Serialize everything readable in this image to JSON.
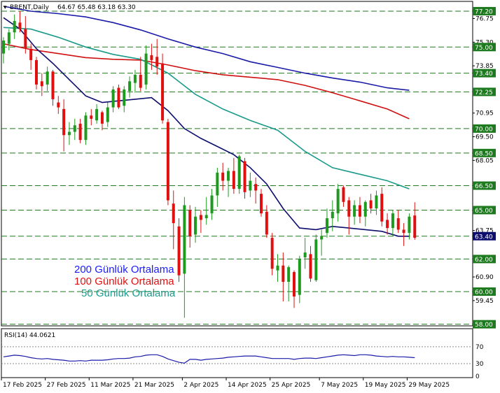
{
  "header": {
    "symbol": "BRENT,Daily",
    "ohlc": "64.67 65.48 63.18 63.30"
  },
  "legend": [
    {
      "label": "200 Günlük Ortalama",
      "color": "#1a1aff"
    },
    {
      "label": "100 Günlük Ortalama",
      "color": "#e01010"
    },
    {
      "label": "50 Günlük Ortalama",
      "color": "#1a9a8a"
    }
  ],
  "colors": {
    "bull": "#1e9a1e",
    "bear": "#e01010",
    "ma20": "#0d0d6e",
    "ma50": "#1a9a8a",
    "ma100": "#d01010",
    "ma200": "#1a1aa8",
    "level_line": "#1e7a1e",
    "level_box": "#1e7a1e",
    "price_box": "#0d0d6e",
    "rsi_line": "#1a1aa8"
  },
  "chart_data": [
    {
      "type": "candlestick",
      "title": "BRENT,Daily",
      "ylim": [
        57.9,
        77.8
      ],
      "y_ticks": [
        "76.75",
        "75.30",
        "73.85",
        "72.25",
        "70.95",
        "69.50",
        "68.05",
        "66.50",
        "65.00",
        "63.75",
        "62.00",
        "60.90",
        "59.45",
        "58.00"
      ],
      "levels": [
        77.2,
        75.0,
        73.4,
        72.25,
        70.0,
        68.5,
        66.5,
        65.0,
        63.4,
        62.0,
        60.0,
        58.0
      ],
      "level_labels": [
        "77.20",
        "75.00",
        "73.40",
        "72.25",
        "70.00",
        "68.50",
        "66.50",
        "65.00",
        "63.40",
        "62.00",
        "60.00",
        "58.00"
      ],
      "current_price": "63.40",
      "x_labels": [
        "17 Feb 2025",
        "27 Feb 2025",
        "11 Mar 2025",
        "21 Mar 2025",
        "2 Apr 2025",
        "14 Apr 2025",
        "25 Apr 2025",
        "7 May 2025",
        "19 May 2025",
        "29 May 2025"
      ],
      "x_label_index": [
        0,
        8,
        16,
        24,
        33,
        41,
        49,
        58,
        66,
        74
      ],
      "candles": [
        {
          "o": 74.6,
          "h": 75.6,
          "l": 74.0,
          "c": 75.4
        },
        {
          "o": 75.2,
          "h": 76.1,
          "l": 74.8,
          "c": 75.9
        },
        {
          "o": 75.9,
          "h": 77.0,
          "l": 75.5,
          "c": 76.6
        },
        {
          "o": 76.5,
          "h": 77.2,
          "l": 75.9,
          "c": 76.1
        },
        {
          "o": 76.1,
          "h": 76.9,
          "l": 74.6,
          "c": 74.9
        },
        {
          "o": 74.9,
          "h": 75.2,
          "l": 73.6,
          "c": 74.2
        },
        {
          "o": 74.2,
          "h": 74.4,
          "l": 72.4,
          "c": 72.7
        },
        {
          "o": 72.9,
          "h": 73.4,
          "l": 72.0,
          "c": 72.6
        },
        {
          "o": 72.7,
          "h": 73.8,
          "l": 72.3,
          "c": 73.5
        },
        {
          "o": 73.5,
          "h": 73.6,
          "l": 71.4,
          "c": 71.8
        },
        {
          "o": 71.6,
          "h": 72.0,
          "l": 70.9,
          "c": 71.3
        },
        {
          "o": 71.2,
          "h": 71.8,
          "l": 68.6,
          "c": 69.6
        },
        {
          "o": 69.6,
          "h": 70.4,
          "l": 69.0,
          "c": 69.8
        },
        {
          "o": 69.8,
          "h": 70.6,
          "l": 69.3,
          "c": 70.2
        },
        {
          "o": 70.3,
          "h": 70.6,
          "l": 69.1,
          "c": 69.3
        },
        {
          "o": 69.3,
          "h": 71.0,
          "l": 69.0,
          "c": 70.8
        },
        {
          "o": 70.8,
          "h": 71.2,
          "l": 70.2,
          "c": 70.6
        },
        {
          "o": 70.5,
          "h": 71.5,
          "l": 70.3,
          "c": 71.2
        },
        {
          "o": 71.0,
          "h": 71.1,
          "l": 69.9,
          "c": 70.3
        },
        {
          "o": 70.4,
          "h": 71.6,
          "l": 70.1,
          "c": 71.3
        },
        {
          "o": 71.3,
          "h": 72.6,
          "l": 71.0,
          "c": 72.4
        },
        {
          "o": 72.5,
          "h": 72.7,
          "l": 71.2,
          "c": 71.3
        },
        {
          "o": 71.4,
          "h": 72.6,
          "l": 71.0,
          "c": 72.4
        },
        {
          "o": 72.3,
          "h": 73.2,
          "l": 71.9,
          "c": 72.9
        },
        {
          "o": 72.8,
          "h": 73.6,
          "l": 72.2,
          "c": 73.3
        },
        {
          "o": 73.3,
          "h": 74.4,
          "l": 72.3,
          "c": 72.5
        },
        {
          "o": 72.7,
          "h": 75.1,
          "l": 72.4,
          "c": 74.6
        },
        {
          "o": 74.5,
          "h": 75.2,
          "l": 73.6,
          "c": 74.2
        },
        {
          "o": 74.4,
          "h": 75.5,
          "l": 73.3,
          "c": 73.8
        },
        {
          "o": 74.0,
          "h": 74.6,
          "l": 70.3,
          "c": 70.5
        },
        {
          "o": 70.4,
          "h": 70.6,
          "l": 65.3,
          "c": 65.6
        },
        {
          "o": 65.4,
          "h": 66.2,
          "l": 62.6,
          "c": 64.2
        },
        {
          "o": 64.0,
          "h": 64.5,
          "l": 60.6,
          "c": 61.0
        },
        {
          "o": 61.1,
          "h": 65.8,
          "l": 58.4,
          "c": 65.3
        },
        {
          "o": 65.0,
          "h": 65.3,
          "l": 62.7,
          "c": 63.4
        },
        {
          "o": 63.5,
          "h": 65.2,
          "l": 63.0,
          "c": 64.6
        },
        {
          "o": 64.7,
          "h": 65.0,
          "l": 63.6,
          "c": 64.4
        },
        {
          "o": 64.5,
          "h": 65.8,
          "l": 64.1,
          "c": 64.7
        },
        {
          "o": 64.8,
          "h": 66.3,
          "l": 64.4,
          "c": 65.9
        },
        {
          "o": 65.9,
          "h": 67.6,
          "l": 65.2,
          "c": 67.3
        },
        {
          "o": 67.3,
          "h": 67.9,
          "l": 66.2,
          "c": 66.8
        },
        {
          "o": 66.8,
          "h": 67.6,
          "l": 65.8,
          "c": 67.4
        },
        {
          "o": 67.4,
          "h": 68.2,
          "l": 66.0,
          "c": 66.3
        },
        {
          "o": 66.3,
          "h": 68.4,
          "l": 66.0,
          "c": 68.3
        },
        {
          "o": 68.0,
          "h": 68.2,
          "l": 65.7,
          "c": 66.1
        },
        {
          "o": 66.2,
          "h": 67.3,
          "l": 65.8,
          "c": 66.8
        },
        {
          "o": 66.6,
          "h": 67.0,
          "l": 65.4,
          "c": 66.2
        },
        {
          "o": 66.0,
          "h": 66.3,
          "l": 64.6,
          "c": 64.8
        },
        {
          "o": 64.9,
          "h": 65.3,
          "l": 63.3,
          "c": 63.5
        },
        {
          "o": 63.3,
          "h": 63.6,
          "l": 61.0,
          "c": 61.4
        },
        {
          "o": 61.3,
          "h": 62.3,
          "l": 60.6,
          "c": 61.6
        },
        {
          "o": 61.6,
          "h": 62.4,
          "l": 59.4,
          "c": 60.6
        },
        {
          "o": 60.6,
          "h": 61.6,
          "l": 59.4,
          "c": 61.5
        },
        {
          "o": 61.2,
          "h": 61.3,
          "l": 59.0,
          "c": 59.7
        },
        {
          "o": 59.8,
          "h": 62.2,
          "l": 59.3,
          "c": 62.0
        },
        {
          "o": 62.1,
          "h": 63.3,
          "l": 61.4,
          "c": 62.4
        },
        {
          "o": 62.3,
          "h": 62.8,
          "l": 60.6,
          "c": 60.8
        },
        {
          "o": 60.7,
          "h": 63.5,
          "l": 60.6,
          "c": 63.2
        },
        {
          "o": 63.2,
          "h": 63.8,
          "l": 62.2,
          "c": 63.4
        },
        {
          "o": 63.6,
          "h": 65.1,
          "l": 63.3,
          "c": 64.5
        },
        {
          "o": 64.5,
          "h": 65.6,
          "l": 63.7,
          "c": 64.9
        },
        {
          "o": 64.8,
          "h": 66.6,
          "l": 64.3,
          "c": 66.3
        },
        {
          "o": 66.4,
          "h": 66.5,
          "l": 65.2,
          "c": 65.5
        },
        {
          "o": 65.6,
          "h": 65.8,
          "l": 63.5,
          "c": 64.6
        },
        {
          "o": 64.6,
          "h": 65.6,
          "l": 64.1,
          "c": 65.3
        },
        {
          "o": 65.3,
          "h": 65.8,
          "l": 64.2,
          "c": 64.6
        },
        {
          "o": 64.6,
          "h": 65.6,
          "l": 64.0,
          "c": 65.5
        },
        {
          "o": 65.6,
          "h": 66.0,
          "l": 64.8,
          "c": 65.1
        },
        {
          "o": 65.1,
          "h": 66.2,
          "l": 64.7,
          "c": 65.9
        },
        {
          "o": 66.0,
          "h": 66.4,
          "l": 64.0,
          "c": 64.3
        },
        {
          "o": 64.4,
          "h": 64.8,
          "l": 63.5,
          "c": 63.9
        },
        {
          "o": 63.9,
          "h": 65.0,
          "l": 63.4,
          "c": 64.8
        },
        {
          "o": 64.5,
          "h": 65.0,
          "l": 63.6,
          "c": 63.8
        },
        {
          "o": 63.8,
          "h": 64.2,
          "l": 62.8,
          "c": 63.6
        },
        {
          "o": 63.6,
          "h": 64.8,
          "l": 63.2,
          "c": 64.6
        },
        {
          "o": 64.67,
          "h": 65.48,
          "l": 63.18,
          "c": 63.3
        }
      ],
      "ma": [
        {
          "name": "200 Günlük Ortalama",
          "color_key": "ma200",
          "points": [
            [
              0,
              77.5
            ],
            [
              5,
              77.2
            ],
            [
              10,
              77.05
            ],
            [
              15,
              76.85
            ],
            [
              20,
              76.5
            ],
            [
              25,
              76.05
            ],
            [
              30,
              75.5
            ],
            [
              35,
              75.0
            ],
            [
              40,
              74.6
            ],
            [
              45,
              74.1
            ],
            [
              50,
              73.75
            ],
            [
              55,
              73.4
            ],
            [
              60,
              73.1
            ],
            [
              65,
              72.85
            ],
            [
              70,
              72.5
            ],
            [
              74,
              72.35
            ]
          ]
        },
        {
          "name": "100 Günlük Ortalama",
          "color_key": "ma100",
          "points": [
            [
              0,
              75.2
            ],
            [
              5,
              74.85
            ],
            [
              10,
              74.6
            ],
            [
              15,
              74.35
            ],
            [
              20,
              74.25
            ],
            [
              25,
              74.2
            ],
            [
              30,
              73.9
            ],
            [
              35,
              73.55
            ],
            [
              40,
              73.3
            ],
            [
              45,
              73.15
            ],
            [
              50,
              73.0
            ],
            [
              55,
              72.65
            ],
            [
              60,
              72.2
            ],
            [
              65,
              71.7
            ],
            [
              70,
              71.2
            ],
            [
              74,
              70.6
            ]
          ]
        },
        {
          "name": "50 Günlük Ortalama",
          "color_key": "ma50",
          "points": [
            [
              0,
              76.2
            ],
            [
              5,
              76.1
            ],
            [
              10,
              75.6
            ],
            [
              15,
              75.0
            ],
            [
              20,
              74.55
            ],
            [
              25,
              74.25
            ],
            [
              30,
              73.4
            ],
            [
              35,
              72.1
            ],
            [
              40,
              71.2
            ],
            [
              45,
              70.5
            ],
            [
              50,
              69.9
            ],
            [
              55,
              68.6
            ],
            [
              60,
              67.6
            ],
            [
              65,
              67.2
            ],
            [
              70,
              66.8
            ],
            [
              74,
              66.3
            ]
          ]
        },
        {
          "name": "",
          "color_key": "ma20",
          "points": [
            [
              0,
              76.8
            ],
            [
              3,
              76.1
            ],
            [
              6,
              74.9
            ],
            [
              9,
              74.0
            ],
            [
              12,
              73.0
            ],
            [
              15,
              72.0
            ],
            [
              18,
              71.6
            ],
            [
              21,
              71.7
            ],
            [
              24,
              71.8
            ],
            [
              27,
              71.9
            ],
            [
              30,
              71.1
            ],
            [
              33,
              70.0
            ],
            [
              36,
              69.4
            ],
            [
              39,
              68.9
            ],
            [
              42,
              68.4
            ],
            [
              45,
              67.6
            ],
            [
              48,
              66.6
            ],
            [
              51,
              65.1
            ],
            [
              54,
              63.9
            ],
            [
              57,
              63.8
            ],
            [
              60,
              64.0
            ],
            [
              63,
              63.9
            ],
            [
              66,
              63.8
            ],
            [
              69,
              63.7
            ],
            [
              72,
              63.4
            ],
            [
              74,
              63.4
            ]
          ]
        }
      ]
    },
    {
      "type": "line",
      "title": "RSI(14) 44.0621",
      "ylim": [
        0,
        100
      ],
      "y_ticks": [
        "70",
        "30",
        "0"
      ],
      "levels": [
        70,
        30
      ],
      "values": [
        46,
        48,
        50,
        49,
        47,
        44,
        42,
        41,
        42,
        40,
        39,
        38,
        36,
        36,
        37,
        36,
        38,
        38,
        38,
        39,
        41,
        42,
        42,
        43,
        46,
        47,
        50,
        51,
        51,
        47,
        41,
        37,
        33,
        31,
        40,
        40,
        38,
        40,
        41,
        42,
        43,
        45,
        46,
        47,
        48,
        48,
        48,
        46,
        44,
        42,
        42,
        42,
        42,
        40,
        42,
        43,
        43,
        42,
        44,
        46,
        48,
        50,
        51,
        50,
        49,
        51,
        51,
        50,
        48,
        47,
        46,
        47,
        46,
        46,
        45,
        44
      ]
    }
  ]
}
